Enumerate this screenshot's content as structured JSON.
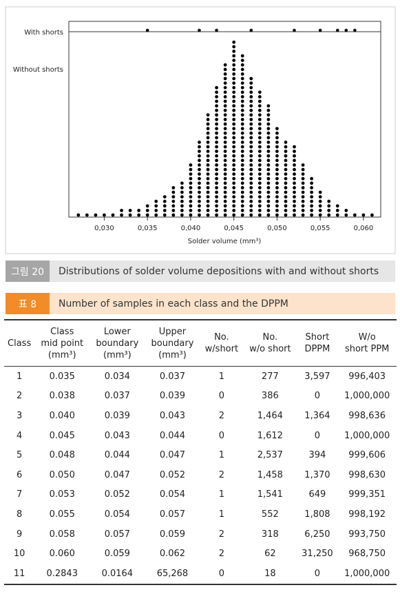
{
  "figure": {
    "row_labels": [
      "With shorts",
      "Without shorts"
    ],
    "x_label": "Solder volume (mm³)",
    "xlim": [
      0.0259,
      0.062
    ],
    "xticks": [
      {
        "value": 0.03,
        "label": "0,030"
      },
      {
        "value": 0.035,
        "label": "0,035"
      },
      {
        "value": 0.04,
        "label": "0,040"
      },
      {
        "value": 0.045,
        "label": "0,045"
      },
      {
        "value": 0.05,
        "label": "0,050"
      },
      {
        "value": 0.055,
        "label": "0,055"
      },
      {
        "value": 0.06,
        "label": "0,060"
      }
    ],
    "with_shorts_x": [
      0.035,
      0.041,
      0.043,
      0.047,
      0.052,
      0.055,
      0.057,
      0.058,
      0.059
    ],
    "without_shorts": {
      "x": [
        0.027,
        0.028,
        0.029,
        0.03,
        0.031,
        0.032,
        0.033,
        0.034,
        0.035,
        0.036,
        0.037,
        0.038,
        0.039,
        0.04,
        0.041,
        0.042,
        0.043,
        0.044,
        0.045,
        0.046,
        0.047,
        0.048,
        0.049,
        0.05,
        0.051,
        0.052,
        0.053,
        0.054,
        0.055,
        0.056,
        0.057,
        0.058,
        0.059,
        0.06,
        0.061
      ],
      "counts": [
        1,
        1,
        1,
        1,
        1,
        2,
        2,
        2,
        3,
        4,
        5,
        7,
        8,
        12,
        17,
        23,
        29,
        34,
        39,
        36,
        31,
        28,
        25,
        20,
        17,
        16,
        12,
        9,
        6,
        4,
        3,
        2,
        1,
        1,
        1
      ]
    }
  },
  "figure_caption": {
    "label": "그림 20",
    "text": "Distributions of solder volume depositions with and without shorts"
  },
  "table_caption": {
    "label": "표 8",
    "text": "Number of samples in each class and the DPPM"
  },
  "table": {
    "header": [
      [
        "Class"
      ],
      [
        "Class",
        "mid point",
        "(mm³)"
      ],
      [
        "Lower",
        "boundary",
        "(mm³)"
      ],
      [
        "Upper",
        "boundary",
        "(mm³)"
      ],
      [
        "No.",
        "w/short"
      ],
      [
        "No.",
        "w/o short"
      ],
      [
        "Short",
        "DPPM"
      ],
      [
        "W/o",
        "short PPM"
      ]
    ],
    "rows": [
      [
        "1",
        "0.035",
        "0.034",
        "0.037",
        "1",
        "277",
        "3,597",
        "996,403"
      ],
      [
        "2",
        "0.038",
        "0.037",
        "0.039",
        "0",
        "386",
        "0",
        "1,000,000"
      ],
      [
        "3",
        "0.040",
        "0.039",
        "0.043",
        "2",
        "1,464",
        "1,364",
        "998,636"
      ],
      [
        "4",
        "0.045",
        "0.043",
        "0.044",
        "0",
        "1,612",
        "0",
        "1,000,000"
      ],
      [
        "5",
        "0.048",
        "0.044",
        "0.047",
        "1",
        "2,537",
        "394",
        "999,606"
      ],
      [
        "6",
        "0.050",
        "0.047",
        "0.052",
        "2",
        "1,458",
        "1,370",
        "998,630"
      ],
      [
        "7",
        "0.053",
        "0.052",
        "0.054",
        "1",
        "1,541",
        "649",
        "999,351"
      ],
      [
        "8",
        "0.055",
        "0.054",
        "0.057",
        "1",
        "552",
        "1,808",
        "998,192"
      ],
      [
        "9",
        "0.058",
        "0.057",
        "0.059",
        "2",
        "318",
        "6,250",
        "993,750"
      ],
      [
        "10",
        "0.060",
        "0.059",
        "0.062",
        "2",
        "62",
        "31,250",
        "968,750"
      ],
      [
        "11",
        "0.2843",
        "0.0164",
        "65,268",
        "0",
        "18",
        "0",
        "1,000,000"
      ]
    ]
  }
}
